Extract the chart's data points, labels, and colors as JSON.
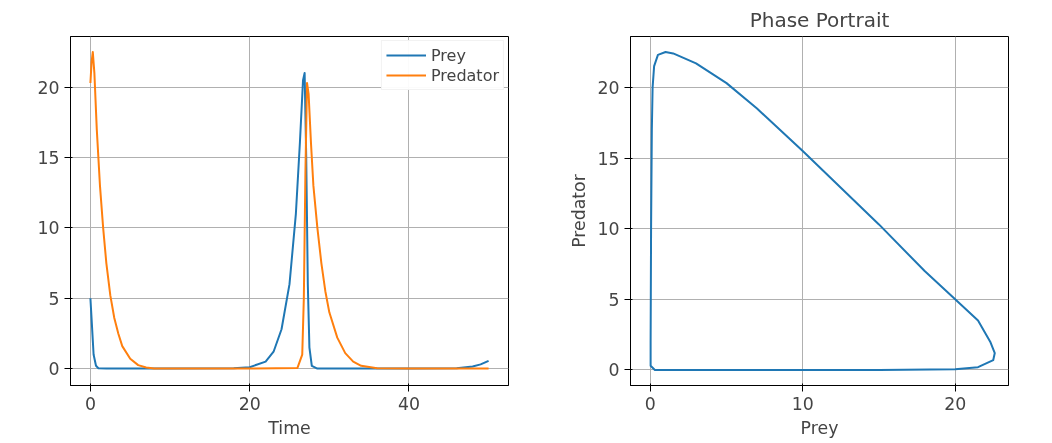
{
  "chart_data": [
    {
      "type": "line",
      "xlabel": "Time",
      "xlim": [
        -2.5,
        52.5
      ],
      "ylim": [
        -1.2,
        23.6
      ],
      "xticks": [
        0,
        20,
        40
      ],
      "yticks": [
        0,
        5,
        10,
        15,
        20
      ],
      "grid": true,
      "legend": "top right",
      "series": [
        {
          "name": "Prey",
          "color": "#1f77b4",
          "x": [
            0,
            0.2,
            0.4,
            0.7,
            1,
            2,
            10,
            18,
            20,
            22,
            23,
            24,
            25,
            25.8,
            26.3,
            26.7,
            26.9,
            27.1,
            27.3,
            27.5,
            27.8,
            28.5,
            40,
            46,
            48,
            49,
            50
          ],
          "values": [
            5,
            3,
            1,
            0.2,
            0.03,
            0,
            0,
            0.02,
            0.1,
            0.5,
            1.2,
            2.8,
            6,
            11,
            16,
            20.5,
            21,
            15,
            6,
            1.5,
            0.2,
            0,
            0,
            0.02,
            0.15,
            0.3,
            0.55
          ]
        },
        {
          "name": "Predator",
          "color": "#ff7f0e",
          "x": [
            0,
            0.15,
            0.3,
            0.5,
            0.8,
            1.2,
            1.6,
            2,
            2.5,
            3,
            3.5,
            4,
            5,
            6,
            7,
            8,
            20,
            26,
            26.6,
            26.8,
            27,
            27.2,
            27.4,
            27.7,
            28,
            28.5,
            29,
            29.5,
            30,
            31,
            32,
            33,
            34,
            36,
            40,
            50
          ],
          "values": [
            20.3,
            21.8,
            22.5,
            21,
            17,
            13,
            10,
            7.5,
            5.2,
            3.6,
            2.5,
            1.6,
            0.7,
            0.25,
            0.08,
            0,
            0,
            0.05,
            1,
            5,
            14,
            20.3,
            19.5,
            16,
            13,
            10,
            7.5,
            5.5,
            4,
            2.2,
            1.1,
            0.5,
            0.2,
            0.03,
            0,
            0
          ]
        }
      ]
    },
    {
      "type": "line",
      "title": "Phase Portrait",
      "xlabel": "Prey",
      "ylabel": "Predator",
      "xlim": [
        -1.3,
        23.5
      ],
      "ylim": [
        -1.1,
        23.6
      ],
      "xticks": [
        0,
        10,
        20
      ],
      "yticks": [
        0,
        5,
        10,
        15,
        20
      ],
      "grid": true,
      "series": [
        {
          "color": "#1f77b4",
          "x": [
            5,
            3,
            1.5,
            1,
            0.5,
            0.25,
            0.15,
            0.1,
            0.05,
            0.02,
            0.02,
            0.3,
            5,
            15,
            20,
            21.5,
            22.5,
            22.6,
            22.3,
            21.5,
            20,
            18,
            15,
            10,
            7,
            5,
            3,
            1.5,
            1,
            0.5,
            0.25,
            0.15,
            0.1,
            0.05,
            0.02,
            0.02
          ],
          "values": [
            20.3,
            21.7,
            22.4,
            22.5,
            22.3,
            21.5,
            20,
            17,
            10,
            2,
            0.3,
            0,
            0,
            0,
            0.05,
            0.2,
            0.7,
            1.2,
            2,
            3.5,
            5,
            7,
            10.3,
            15.5,
            18.5,
            20.3,
            21.7,
            22.4,
            22.5,
            22.3,
            21.5,
            20,
            17,
            10,
            2,
            0.3
          ]
        }
      ]
    }
  ]
}
